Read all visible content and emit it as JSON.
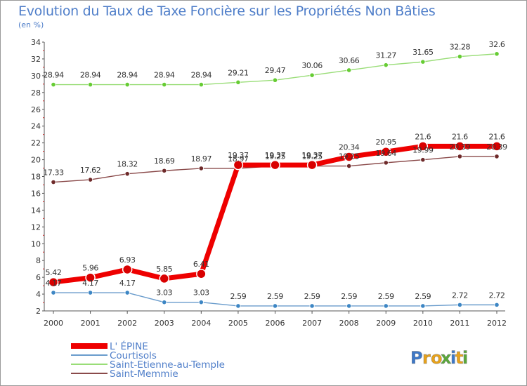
{
  "chart_data": {
    "type": "line",
    "title": "Evolution du Taux de Taxe Foncière sur les Propriétés Non Bâties",
    "subtitle": "(en %)",
    "xlabel": "",
    "ylabel": "",
    "x": [
      "2000",
      "2001",
      "2002",
      "2003",
      "2004",
      "2005",
      "2006",
      "2007",
      "2008",
      "2009",
      "2010",
      "2011",
      "2012"
    ],
    "ylim": [
      2,
      34
    ],
    "yticks": [
      2,
      4,
      6,
      8,
      10,
      12,
      14,
      16,
      18,
      20,
      22,
      24,
      26,
      28,
      30,
      32,
      34
    ],
    "grid": false,
    "legend_position": "bottom-left",
    "series": [
      {
        "name": "L' ÉPINE",
        "color": "#ee0000",
        "marker_color": "#d90000",
        "emphasis": true,
        "values": [
          5.42,
          5.96,
          6.93,
          5.85,
          6.41,
          19.37,
          19.37,
          19.37,
          20.34,
          20.95,
          21.6,
          21.6,
          21.6
        ],
        "labels": [
          "5.42",
          "5.96",
          "6.93",
          "5.85",
          "6.41",
          "19.37",
          "19.37",
          "19.37",
          "20.34",
          "20.95",
          "21.6",
          "21.6",
          "21.6"
        ]
      },
      {
        "name": "Courtisols",
        "color": "#6a9ccc",
        "marker_color": "#3d86c4",
        "values": [
          4.17,
          4.17,
          4.17,
          3.03,
          3.03,
          2.59,
          2.59,
          2.59,
          2.59,
          2.59,
          2.59,
          2.72,
          2.72
        ],
        "labels": [
          "4.17",
          "4.17",
          "4.17",
          "3.03",
          "3.03",
          "2.59",
          "2.59",
          "2.59",
          "2.59",
          "2.59",
          "2.59",
          "2.72",
          "2.72"
        ]
      },
      {
        "name": "Saint-Etienne-au-Temple",
        "color": "#99dd77",
        "marker_color": "#66cc33",
        "values": [
          28.94,
          28.94,
          28.94,
          28.94,
          28.94,
          29.21,
          29.47,
          30.06,
          30.66,
          31.27,
          31.65,
          32.28,
          32.6
        ],
        "labels": [
          "28.94",
          "28.94",
          "28.94",
          "28.94",
          "28.94",
          "29.21",
          "29.47",
          "30.06",
          "30.66",
          "31.27",
          "31.65",
          "32.28",
          "32.6"
        ]
      },
      {
        "name": "Saint-Memmie",
        "color": "#8a4a4a",
        "marker_color": "#6e2a2a",
        "values": [
          17.33,
          17.62,
          18.32,
          18.69,
          18.97,
          18.97,
          19.25,
          19.25,
          19.25,
          19.64,
          19.99,
          20.39,
          20.39
        ],
        "labels": [
          "17.33",
          "17.62",
          "18.32",
          "18.69",
          "18.97",
          "18.97",
          "19.25",
          "19.25",
          "19.25",
          "19.64",
          "19.99",
          "20.39",
          "20.39"
        ]
      }
    ]
  },
  "branding": {
    "logo_text": "Proxiti",
    "colors": [
      "#3d78c8",
      "#e8a21a",
      "#e8a21a",
      "#5aa83a",
      "#3d78c8",
      "#e8a21a",
      "#5aa83a"
    ]
  }
}
